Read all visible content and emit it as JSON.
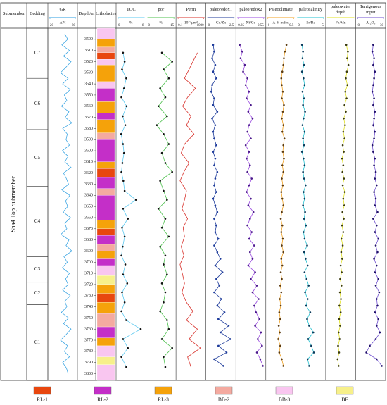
{
  "chart_data": {
    "type": "well-log",
    "ylim": [
      3490,
      3806
    ],
    "yticks": [
      3500,
      3510,
      3520,
      3530,
      3540,
      3550,
      3560,
      3570,
      3580,
      3590,
      3600,
      3610,
      3620,
      3630,
      3640,
      3650,
      3660,
      3670,
      3680,
      3690,
      3700,
      3710,
      3720,
      3730,
      3740,
      3750,
      3760,
      3770,
      3780,
      3790,
      3800
    ],
    "submember_label": "Submember",
    "submember": "Sha4 Top Submember",
    "bedding_label": "Bedding",
    "depth_label": "Depth/m",
    "lithofacies_label": "Lithofacies",
    "bedding": [
      {
        "name": "C7",
        "top": 3490,
        "base": 3535
      },
      {
        "name": "C6",
        "top": 3535,
        "base": 3581
      },
      {
        "name": "C5",
        "top": 3581,
        "base": 3632
      },
      {
        "name": "C4",
        "top": 3632,
        "base": 3695
      },
      {
        "name": "C3",
        "top": 3695,
        "base": 3718
      },
      {
        "name": "C2",
        "top": 3718,
        "base": 3738
      },
      {
        "name": "C1",
        "top": 3738,
        "base": 3806
      }
    ],
    "facies": [
      {
        "name": "RL-1",
        "color": "#e8470f"
      },
      {
        "name": "RL-2",
        "color": "#c42fc8"
      },
      {
        "name": "RL-3",
        "color": "#f5a20a"
      },
      {
        "name": "BB-2",
        "color": "#f4aaa0"
      },
      {
        "name": "BB-3",
        "color": "#f9c6f0"
      },
      {
        "name": "BF",
        "color": "#f7f08a"
      }
    ],
    "lithofacies": [
      {
        "top": 3490,
        "base": 3500,
        "facies": "BB-3"
      },
      {
        "top": 3500,
        "base": 3507,
        "facies": "RL-3"
      },
      {
        "top": 3507,
        "base": 3512,
        "facies": "BB-2"
      },
      {
        "top": 3512,
        "base": 3518,
        "facies": "RL-1"
      },
      {
        "top": 3518,
        "base": 3523,
        "facies": "BB-3"
      },
      {
        "top": 3523,
        "base": 3538,
        "facies": "RL-3"
      },
      {
        "top": 3538,
        "base": 3544,
        "facies": "BB-3"
      },
      {
        "top": 3544,
        "base": 3556,
        "facies": "RL-2"
      },
      {
        "top": 3556,
        "base": 3566,
        "facies": "RL-3"
      },
      {
        "top": 3566,
        "base": 3572,
        "facies": "RL-2"
      },
      {
        "top": 3572,
        "base": 3584,
        "facies": "RL-3"
      },
      {
        "top": 3584,
        "base": 3590,
        "facies": "BB-2"
      },
      {
        "top": 3590,
        "base": 3610,
        "facies": "RL-2"
      },
      {
        "top": 3610,
        "base": 3616,
        "facies": "RL-3"
      },
      {
        "top": 3616,
        "base": 3624,
        "facies": "RL-1"
      },
      {
        "top": 3624,
        "base": 3634,
        "facies": "RL-2"
      },
      {
        "top": 3634,
        "base": 3640,
        "facies": "BB-2"
      },
      {
        "top": 3640,
        "base": 3662,
        "facies": "RL-2"
      },
      {
        "top": 3662,
        "base": 3670,
        "facies": "RL-3"
      },
      {
        "top": 3670,
        "base": 3676,
        "facies": "RL-1"
      },
      {
        "top": 3676,
        "base": 3684,
        "facies": "RL-2"
      },
      {
        "top": 3684,
        "base": 3690,
        "facies": "BB-2"
      },
      {
        "top": 3690,
        "base": 3697,
        "facies": "RL-3"
      },
      {
        "top": 3697,
        "base": 3703,
        "facies": "RL-2"
      },
      {
        "top": 3703,
        "base": 3712,
        "facies": "BB-3"
      },
      {
        "top": 3712,
        "base": 3720,
        "facies": "BF"
      },
      {
        "top": 3720,
        "base": 3728,
        "facies": "RL-3"
      },
      {
        "top": 3728,
        "base": 3736,
        "facies": "RL-1"
      },
      {
        "top": 3736,
        "base": 3746,
        "facies": "RL-3"
      },
      {
        "top": 3746,
        "base": 3758,
        "facies": "BB-2"
      },
      {
        "top": 3758,
        "base": 3768,
        "facies": "RL-2"
      },
      {
        "top": 3768,
        "base": 3775,
        "facies": "RL-3"
      },
      {
        "top": 3775,
        "base": 3785,
        "facies": "BB-3"
      },
      {
        "top": 3785,
        "base": 3792,
        "facies": "BF"
      },
      {
        "top": 3792,
        "base": 3806,
        "facies": "BB-3"
      }
    ],
    "track_groups": [
      {
        "depths": [
          3495,
          3500,
          3505,
          3510,
          3515,
          3520,
          3525,
          3530,
          3535,
          3540,
          3545,
          3550,
          3555,
          3560,
          3565,
          3570,
          3575,
          3580,
          3585,
          3590,
          3595,
          3600,
          3605,
          3610,
          3615,
          3620,
          3625,
          3630,
          3635,
          3640,
          3645,
          3650,
          3655,
          3660,
          3665,
          3670,
          3675,
          3680,
          3685,
          3690,
          3695,
          3700,
          3705,
          3710,
          3715,
          3720,
          3725,
          3730,
          3735,
          3740,
          3745,
          3750,
          3755,
          3760,
          3765,
          3770,
          3775,
          3780,
          3785,
          3790,
          3795,
          3800
        ],
        "tracks": [
          {
            "title": "GR",
            "unit": "API",
            "xlim": [
              20,
              80
            ],
            "xticks": [
              20,
              80
            ],
            "color": "#2a9de0",
            "values": [
              55,
              62,
              48,
              66,
              52,
              70,
              58,
              45,
              63,
              50,
              68,
              54,
              60,
              47,
              65,
              56,
              72,
              50,
              61,
              58,
              66,
              49,
              63,
              55,
              70,
              52,
              59,
              64,
              48,
              67,
              57,
              62,
              51,
              69,
              55,
              60,
              46,
              65,
              58,
              72,
              53,
              61,
              49,
              66,
              57,
              63,
              50,
              68,
              55,
              60,
              47,
              64,
              52,
              70,
              58,
              45,
              62,
              54,
              66,
              50,
              59,
              63
            ]
          }
        ]
      },
      {
        "depths": [
          3512,
          3520,
          3527,
          3535,
          3544,
          3552,
          3560,
          3569,
          3577,
          3585,
          3594,
          3602,
          3611,
          3619,
          3627,
          3636,
          3644,
          3652,
          3661,
          3669,
          3677,
          3686,
          3694,
          3702,
          3711,
          3719,
          3727,
          3736,
          3744,
          3752,
          3760,
          3769,
          3777,
          3785,
          3794
        ],
        "tracks": [
          {
            "title": "TOC",
            "unit": "%",
            "xlim": [
              0,
              8
            ],
            "xticks": [
              0,
              8
            ],
            "color": "#5ac8f0",
            "marker": "#111",
            "values": [
              1.5,
              2.0,
              1.2,
              2.5,
              1.8,
              1.0,
              2.6,
              1.4,
              2.2,
              0.9,
              1.5,
              1.8,
              1.3,
              1.0,
              1.6,
              2.0,
              5.5,
              1.5,
              3.0,
              1.2,
              2.0,
              1.4,
              1.0,
              2.2,
              1.5,
              2.8,
              1.2,
              2.0,
              1.0,
              2.5,
              7.0,
              1.5,
              3.0,
              1.0,
              2.5
            ]
          },
          {
            "title": "por",
            "unit": "%",
            "xlim": [
              0,
              15
            ],
            "xticks": [
              0,
              15
            ],
            "color": "#4cc04c",
            "marker": "#111",
            "values": [
              8,
              14,
              9,
              12,
              7,
              10,
              6,
              11,
              5,
              9,
              12,
              8,
              10,
              14,
              7,
              9,
              11,
              6,
              10,
              8,
              12,
              7,
              10,
              9,
              11,
              8,
              10,
              9,
              7,
              11,
              12,
              8,
              14,
              9,
              10
            ]
          },
          {
            "title": "Perm",
            "unit": "10⁻³μm²",
            "xlim": [
              0.1,
              1000
            ],
            "xticks": [
              0.1,
              1000
            ],
            "log": true,
            "color": "#d8302a",
            "values": [
              100,
              20,
              5,
              1,
              50,
              3,
              0.5,
              10,
              2,
              30,
              1,
              0.3,
              5,
              0.8,
              0.2,
              2,
              1,
              0.4,
              3,
              0.6,
              1,
              0.3,
              0.8,
              0.2,
              0.5,
              1,
              0.4,
              2,
              20,
              2,
              100,
              5,
              300,
              3,
              10
            ]
          }
        ]
      },
      {
        "depths": [
          3505,
          3511,
          3517,
          3523,
          3529,
          3535,
          3541,
          3547,
          3553,
          3559,
          3565,
          3571,
          3577,
          3583,
          3589,
          3595,
          3601,
          3607,
          3613,
          3619,
          3625,
          3631,
          3637,
          3643,
          3649,
          3655,
          3661,
          3667,
          3673,
          3679,
          3685,
          3691,
          3697,
          3703,
          3709,
          3715,
          3721,
          3727,
          3733,
          3739,
          3745,
          3751,
          3757,
          3763,
          3769,
          3775,
          3781,
          3787,
          3793
        ],
        "tracks": [
          {
            "title": "paleoredox1",
            "unit": "Cu/Zn",
            "xlim": [
              0,
              2.5
            ],
            "xticks": [
              0,
              2.5
            ],
            "color": "#1c3a9a",
            "marker": "#1c3a9a",
            "values": [
              0.5,
              0.6,
              0.4,
              0.7,
              0.5,
              0.8,
              0.4,
              0.3,
              0.6,
              0.5,
              0.9,
              0.4,
              0.7,
              0.5,
              0.6,
              0.8,
              0.5,
              0.7,
              0.6,
              0.9,
              0.7,
              0.6,
              0.8,
              0.5,
              0.7,
              0.9,
              0.6,
              0.8,
              0.7,
              1.0,
              0.6,
              0.9,
              1.2,
              0.7,
              1.4,
              0.8,
              1.1,
              0.6,
              1.3,
              0.9,
              1.6,
              1.0,
              2.0,
              1.2,
              2.2,
              1.0,
              1.8,
              0.6,
              1.5
            ]
          },
          {
            "title": "paleoredox2",
            "unit": "Ni/Co",
            "xlim": [
              0.25,
              0.55
            ],
            "xticks": [
              0.25,
              0.55
            ],
            "color": "#9a4ae0",
            "marker": "#4a1a8a",
            "values": [
              0.27,
              0.3,
              0.28,
              0.33,
              0.31,
              0.36,
              0.34,
              0.38,
              0.35,
              0.4,
              0.37,
              0.42,
              0.38,
              0.36,
              0.4,
              0.34,
              0.38,
              0.35,
              0.39,
              0.36,
              0.41,
              0.38,
              0.35,
              0.4,
              0.37,
              0.43,
              0.39,
              0.36,
              0.41,
              0.38,
              0.44,
              0.39,
              0.42,
              0.37,
              0.45,
              0.4,
              0.47,
              0.42,
              0.49,
              0.44,
              0.46,
              0.5,
              0.45,
              0.52,
              0.48,
              0.53,
              0.47,
              0.51,
              0.54
            ]
          },
          {
            "title": "Paleoclimate",
            "unit": "A-H index",
            "xlim": [
              0,
              0.5
            ],
            "xticks": [
              0,
              0.5
            ],
            "color": "#f0a020",
            "marker": "#5a3a10",
            "values": [
              0.36,
              0.33,
              0.31,
              0.3,
              0.28,
              0.26,
              0.27,
              0.29,
              0.27,
              0.31,
              0.29,
              0.27,
              0.3,
              0.28,
              0.32,
              0.3,
              0.29,
              0.31,
              0.28,
              0.3,
              0.27,
              0.29,
              0.26,
              0.28,
              0.3,
              0.27,
              0.25,
              0.28,
              0.26,
              0.29,
              0.27,
              0.3,
              0.26,
              0.28,
              0.25,
              0.27,
              0.24,
              0.26,
              0.23,
              0.25,
              0.22,
              0.24,
              0.21,
              0.23,
              0.2,
              0.24,
              0.22,
              0.27,
              0.3
            ]
          },
          {
            "title": "paleosalinity",
            "unit": "Sr/Ba",
            "xlim": [
              0,
              5
            ],
            "xticks": [
              0,
              5
            ],
            "color": "#22c0d0",
            "marker": "#0a3a5a",
            "values": [
              0.8,
              1.0,
              0.9,
              1.2,
              0.8,
              1.1,
              1.3,
              0.9,
              1.2,
              1.0,
              1.4,
              1.1,
              0.9,
              1.3,
              1.0,
              1.2,
              0.8,
              1.1,
              1.3,
              1.0,
              1.2,
              1.5,
              1.1,
              1.3,
              1.0,
              1.4,
              1.2,
              1.6,
              1.1,
              1.3,
              1.8,
              1.2,
              1.5,
              1.9,
              1.3,
              1.7,
              2.1,
              1.4,
              1.9,
              1.6,
              2.4,
              1.8,
              2.2,
              3.0,
              2.0,
              2.6,
              3.1,
              1.9,
              2.2
            ]
          },
          {
            "title": "paleowater depth",
            "unit": "Fe/Mn",
            "xlim": [
              0,
              100
            ],
            "color": "#e0e020",
            "marker": "#3a3a10",
            "values": [
              72,
              78,
              75,
              80,
              74,
              70,
              76,
              68,
              73,
              65,
              70,
              62,
              67,
              60,
              65,
              58,
              62,
              55,
              60,
              57,
              63,
              58,
              66,
              60,
              64,
              57,
              62,
              55,
              60,
              53,
              58,
              52,
              56,
              50,
              54,
              48,
              53,
              47,
              51,
              45,
              50,
              44,
              48,
              42,
              46,
              40,
              44,
              38,
              42
            ]
          },
          {
            "title": "Terrigenous input",
            "unit": "Al₂O₃",
            "xlim": [
              0,
              30
            ],
            "xticks": [
              0,
              30
            ],
            "color": "#7050d0",
            "marker": "#20106a",
            "values": [
              18,
              17,
              19,
              18,
              20,
              19,
              18,
              17,
              19,
              18,
              20,
              19,
              18,
              20,
              19,
              17,
              18,
              20,
              19,
              21,
              20,
              22,
              19,
              21,
              20,
              23,
              18,
              22,
              20,
              24,
              21,
              23,
              19,
              22,
              20,
              24,
              21,
              25,
              22,
              23,
              20,
              24,
              22,
              26,
              21,
              14,
              10,
              22,
              28
            ]
          }
        ]
      }
    ]
  }
}
